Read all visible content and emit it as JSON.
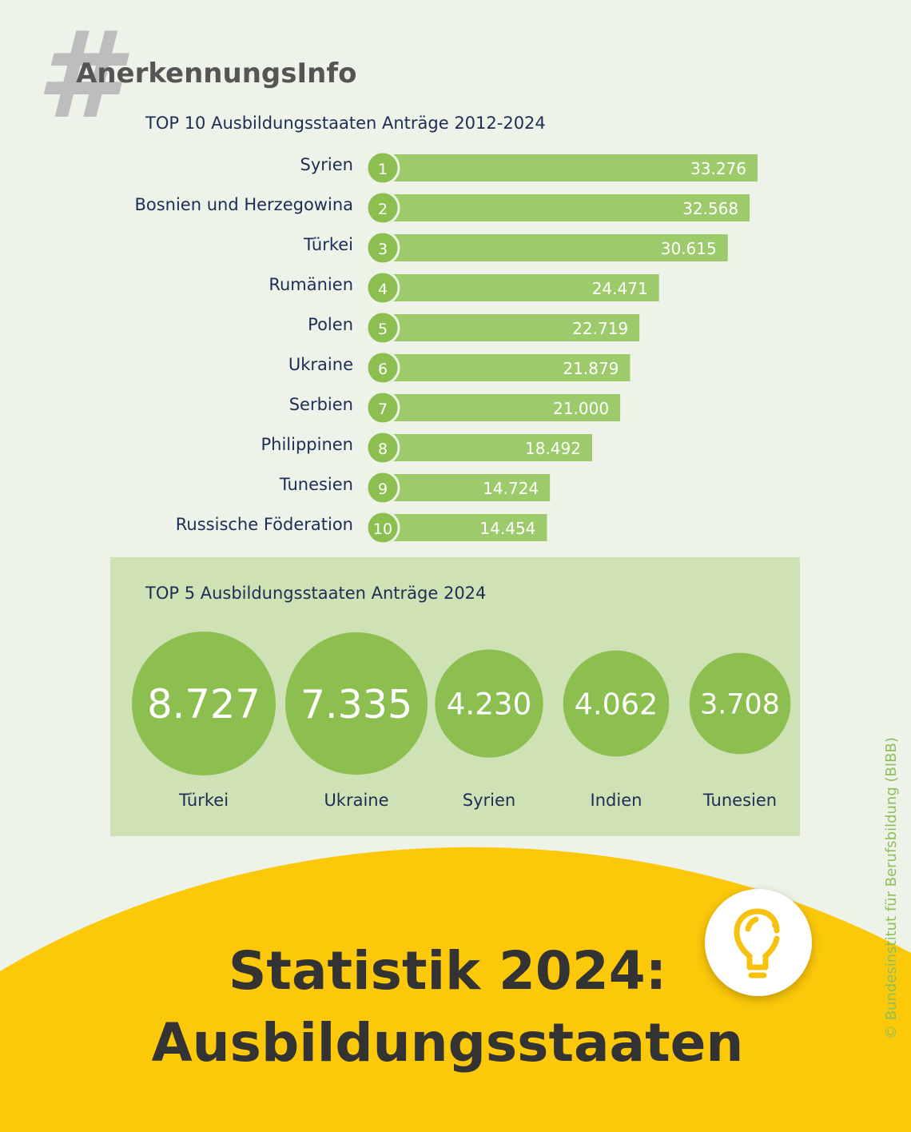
{
  "header": {
    "hash": "#",
    "brand": "AnerkennungsInfo"
  },
  "chart_data": [
    {
      "type": "bar",
      "orientation": "horizontal",
      "title": "TOP 10 Ausbildungsstaaten Anträge 2012-2024",
      "categories": [
        "Syrien",
        "Bosnien und Herzegowina",
        "Türkei",
        "Rumänien",
        "Polen",
        "Ukraine",
        "Serbien",
        "Philippinen",
        "Tunesien",
        "Russische Föderation"
      ],
      "ranks": [
        "1",
        "2",
        "3",
        "4",
        "5",
        "6",
        "7",
        "8",
        "9",
        "10"
      ],
      "values": [
        33276,
        32568,
        30615,
        24471,
        22719,
        21879,
        21000,
        18492,
        14724,
        14454
      ],
      "labels": [
        "33.276",
        "32.568",
        "30.615",
        "24.471",
        "22.719",
        "21.879",
        "21.000",
        "18.492",
        "14.724",
        "14.454"
      ]
    },
    {
      "type": "bubble",
      "title": "TOP 5 Ausbildungsstaaten Anträge 2024",
      "categories": [
        "Türkei",
        "Ukraine",
        "Syrien",
        "Indien",
        "Tunesien"
      ],
      "values": [
        8727,
        7335,
        4230,
        4062,
        3708
      ],
      "labels": [
        "8.727",
        "7.335",
        "4.230",
        "4.062",
        "3.708"
      ]
    }
  ],
  "footer": {
    "title_line1": "Statistik 2024:",
    "title_line2": "Ausbildungsstaaten",
    "copyright": "© Bundesinstitut für Berufsbildung (BIBB)"
  },
  "colors": {
    "bar": "#9dcb6c",
    "circle": "#8cbf4f",
    "yellow": "#fcc80a",
    "bg": "#edf3e8"
  }
}
